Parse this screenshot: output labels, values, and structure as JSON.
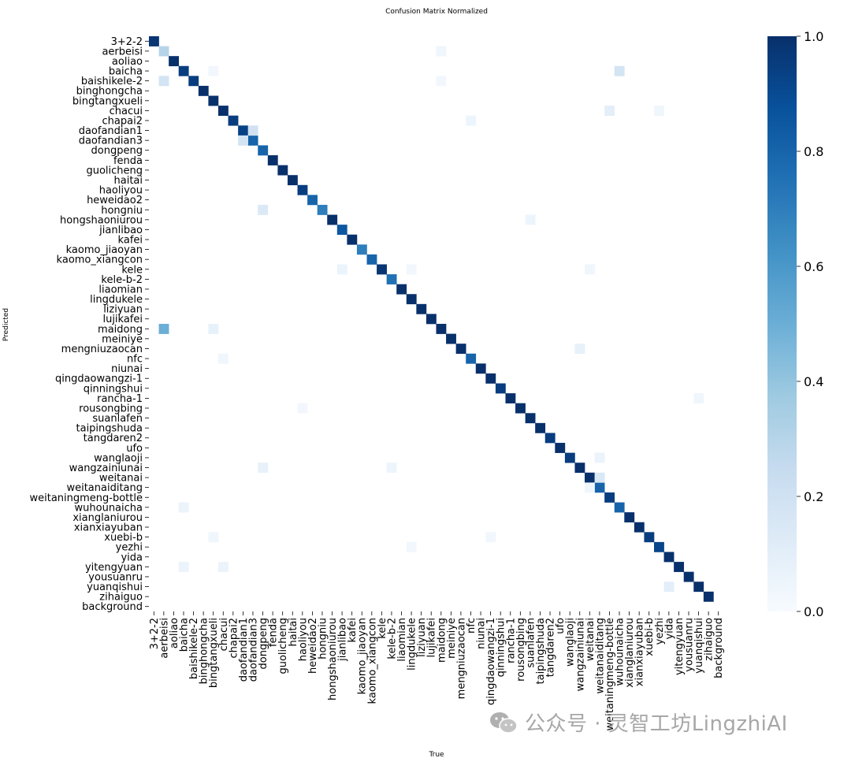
{
  "chart_data": {
    "type": "heatmap",
    "title": "Confusion Matrix Normalized",
    "xlabel": "True",
    "ylabel": "Predicted",
    "labels": [
      "3+2-2",
      "aerbeisi",
      "aoliao",
      "baicha",
      "baishikele-2",
      "binghongcha",
      "bingtangxueli",
      "chacui",
      "chapai2",
      "daofandian1",
      "daofandian3",
      "dongpeng",
      "fenda",
      "guolicheng",
      "haitai",
      "haoliyou",
      "heweidao2",
      "hongniu",
      "hongshaoniurou",
      "jianlibao",
      "kafei",
      "kaomo_jiaoyan",
      "kaomo_xiangcon",
      "kele",
      "kele-b-2",
      "liaomian",
      "lingdukele",
      "liziyuan",
      "lujikafei",
      "maidong",
      "meiniye",
      "mengniuzaocan",
      "nfc",
      "niunai",
      "qingdaowangzi-1",
      "qinningshui",
      "rancha-1",
      "rousongbing",
      "suanlafen",
      "taipingshuda",
      "tangdaren2",
      "ufo",
      "wanglaoji",
      "wangzainiunai",
      "weitanai",
      "weitanaiditang",
      "weitaningmeng-bottle",
      "wuhounaicha",
      "xianglaniurou",
      "xianxiayuban",
      "xuebi-b",
      "yezhi",
      "yida",
      "yitengyuan",
      "yousuanru",
      "yuanqishui",
      "zihaiguo",
      "background"
    ],
    "diagonal": [
      0.98,
      0.3,
      1.0,
      0.95,
      0.95,
      1.0,
      1.0,
      1.0,
      0.95,
      0.93,
      0.8,
      0.8,
      1.0,
      1.0,
      1.0,
      0.95,
      0.8,
      0.7,
      1.0,
      0.85,
      1.0,
      0.7,
      0.8,
      0.98,
      0.75,
      1.0,
      1.0,
      1.0,
      1.0,
      1.0,
      1.0,
      1.0,
      0.8,
      1.0,
      1.0,
      0.95,
      1.0,
      1.0,
      1.0,
      1.0,
      0.95,
      1.0,
      0.95,
      1.0,
      1.0,
      0.8,
      0.95,
      0.8,
      1.0,
      1.0,
      0.95,
      0.92,
      1.0,
      1.0,
      1.0,
      1.0,
      1.0,
      0
    ],
    "off_diagonal": [
      {
        "true": "maidong",
        "pred": "aerbeisi",
        "value": 0.04
      },
      {
        "true": "bingtangxueli",
        "pred": "baicha",
        "value": 0.03
      },
      {
        "true": "wuhounaicha",
        "pred": "baicha",
        "value": 0.18
      },
      {
        "true": "aerbeisi",
        "pred": "baishikele-2",
        "value": 0.18
      },
      {
        "true": "maidong",
        "pred": "baishikele-2",
        "value": 0.03
      },
      {
        "true": "weitaningmeng-bottle",
        "pred": "chacui",
        "value": 0.1
      },
      {
        "true": "yezhi",
        "pred": "chacui",
        "value": 0.04
      },
      {
        "true": "nfc",
        "pred": "chapai2",
        "value": 0.05
      },
      {
        "true": "daofandian3",
        "pred": "daofandian1",
        "value": 0.2
      },
      {
        "true": "daofandian1",
        "pred": "daofandian3",
        "value": 0.18
      },
      {
        "true": "dongpeng",
        "pred": "hongniu",
        "value": 0.14
      },
      {
        "true": "suanlafen",
        "pred": "hongshaoniurou",
        "value": 0.05
      },
      {
        "true": "jianlibao",
        "pred": "kele",
        "value": 0.06
      },
      {
        "true": "lingdukele",
        "pred": "kele",
        "value": 0.03
      },
      {
        "true": "weitanai",
        "pred": "kele",
        "value": 0.04
      },
      {
        "true": "aerbeisi",
        "pred": "maidong",
        "value": 0.5
      },
      {
        "true": "bingtangxueli",
        "pred": "maidong",
        "value": 0.08
      },
      {
        "true": "wangzainiunai",
        "pred": "mengniuzaocan",
        "value": 0.08
      },
      {
        "true": "chacui",
        "pred": "nfc",
        "value": 0.04
      },
      {
        "true": "yuanqishui",
        "pred": "rancha-1",
        "value": 0.04
      },
      {
        "true": "haoliyou",
        "pred": "rousongbing",
        "value": 0.03
      },
      {
        "true": "weitanaiditang",
        "pred": "wanglaoji",
        "value": 0.06
      },
      {
        "true": "dongpeng",
        "pred": "wangzainiunai",
        "value": 0.08
      },
      {
        "true": "kele-b-2",
        "pred": "wangzainiunai",
        "value": 0.05
      },
      {
        "true": "weitanaiditang",
        "pred": "weitanai",
        "value": 0.15
      },
      {
        "true": "weitanai",
        "pred": "weitanaiditang",
        "value": 0.04
      },
      {
        "true": "baicha",
        "pred": "wuhounaicha",
        "value": 0.06
      },
      {
        "true": "bingtangxueli",
        "pred": "xuebi-b",
        "value": 0.04
      },
      {
        "true": "qingdaowangzi-1",
        "pred": "xuebi-b",
        "value": 0.03
      },
      {
        "true": "lingdukele",
        "pred": "yezhi",
        "value": 0.03
      },
      {
        "true": "baicha",
        "pred": "yitengyuan",
        "value": 0.06
      },
      {
        "true": "chacui",
        "pred": "yitengyuan",
        "value": 0.06
      },
      {
        "true": "yida",
        "pred": "yuanqishui",
        "value": 0.1
      }
    ],
    "colorbar": {
      "min": 0.0,
      "max": 1.0,
      "ticks": [
        "0.0",
        "0.2",
        "0.4",
        "0.6",
        "0.8",
        "1.0"
      ]
    },
    "colormap": {
      "low": "#f7fbff",
      "mid": "#6baed6",
      "high": "#08306b"
    }
  },
  "watermark": {
    "text": "公众号 · 灵智工坊LingzhiAI",
    "icon": "wechat-icon"
  }
}
